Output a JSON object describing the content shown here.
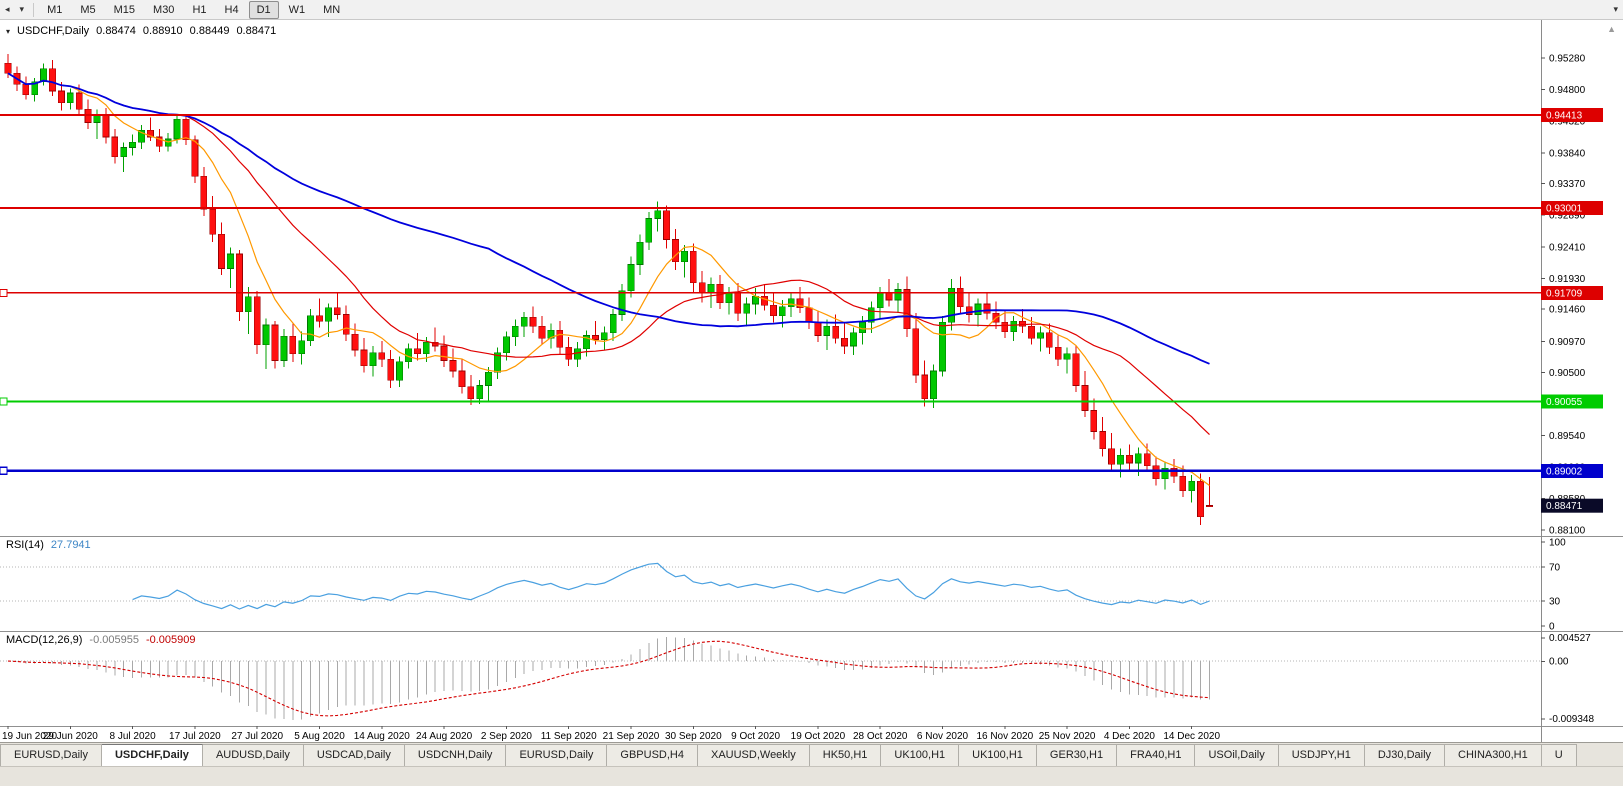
{
  "toolbar": {
    "timeframes": [
      "M1",
      "M5",
      "M15",
      "M30",
      "H1",
      "H4",
      "D1",
      "W1",
      "MN"
    ],
    "active_timeframe": "D1"
  },
  "header": {
    "symbol_label": "USDCHF,Daily",
    "open": "0.88474",
    "high": "0.88910",
    "low": "0.88449",
    "close": "0.88471"
  },
  "price_axis": {
    "min": 0.8801,
    "max": 0.9586,
    "ticks": [
      "0.95280",
      "0.94800",
      "0.94320",
      "0.93840",
      "0.93370",
      "0.92890",
      "0.92410",
      "0.91930",
      "0.91460",
      "0.90970",
      "0.90500",
      "0.90020",
      "0.89540",
      "0.89060",
      "0.88580",
      "0.88100"
    ]
  },
  "hlines": [
    {
      "label": "0.94413",
      "value": 0.94413,
      "color": "#DD0000",
      "width": 2,
      "text_color": "#FFFFFF",
      "left_marker": false
    },
    {
      "label": "0.93001",
      "value": 0.93001,
      "color": "#DD0000",
      "width": 2,
      "text_color": "#FFFFFF",
      "left_marker": false
    },
    {
      "label": "0.91709",
      "value": 0.91709,
      "color": "#DD0000",
      "width": 1.4,
      "text_color": "#FFFFFF",
      "left_marker": true
    },
    {
      "label": "0.90055",
      "value": 0.90055,
      "color": "#00CC00",
      "width": 2,
      "text_color": "#FFFFFF",
      "left_marker": true
    },
    {
      "label": "0.89002",
      "value": 0.89002,
      "color": "#0000CC",
      "width": 2.4,
      "text_color": "#FFFFFF",
      "left_marker": true
    }
  ],
  "current_price": {
    "label": "0.88471",
    "value": 0.88471,
    "bg": "#0A0A28",
    "text_color": "#FFFFFF"
  },
  "chart_data": {
    "type": "candlestick",
    "symbol": "USDCHF",
    "timeframe": "Daily",
    "x_label_step": 7,
    "x_labels": [
      "19 Jun 2020",
      "29 Jun 2020",
      "8 Jul 2020",
      "17 Jul 2020",
      "27 Jul 2020",
      "5 Aug 2020",
      "14 Aug 2020",
      "24 Aug 2020",
      "2 Sep 2020",
      "11 Sep 2020",
      "21 Sep 2020",
      "30 Sep 2020",
      "9 Oct 2020",
      "19 Oct 2020",
      "28 Oct 2020",
      "6 Nov 2020",
      "16 Nov 2020",
      "25 Nov 2020",
      "4 Dec 2020",
      "14 Dec 2020"
    ],
    "moving_averages": [
      {
        "period": 8,
        "color": "#FF9900",
        "width": 1.2
      },
      {
        "period": 21,
        "color": "#E00000",
        "width": 1.2
      },
      {
        "period": 55,
        "color": "#0000DD",
        "width": 1.8
      }
    ],
    "candles": [
      [
        0.952,
        0.9534,
        0.9498,
        0.9505
      ],
      [
        0.9505,
        0.9515,
        0.9478,
        0.9488
      ],
      [
        0.9488,
        0.95,
        0.9465,
        0.9472
      ],
      [
        0.9472,
        0.9498,
        0.9462,
        0.9492
      ],
      [
        0.9492,
        0.952,
        0.9486,
        0.9512
      ],
      [
        0.9512,
        0.9525,
        0.947,
        0.9478
      ],
      [
        0.9478,
        0.9492,
        0.9448,
        0.946
      ],
      [
        0.946,
        0.9482,
        0.945,
        0.9475
      ],
      [
        0.9475,
        0.9488,
        0.9442,
        0.945
      ],
      [
        0.945,
        0.9465,
        0.942,
        0.943
      ],
      [
        0.943,
        0.945,
        0.9405,
        0.9442
      ],
      [
        0.9442,
        0.9452,
        0.9398,
        0.9408
      ],
      [
        0.9408,
        0.942,
        0.9368,
        0.9378
      ],
      [
        0.9378,
        0.94,
        0.9355,
        0.9392
      ],
      [
        0.9392,
        0.9412,
        0.938,
        0.94
      ],
      [
        0.94,
        0.9426,
        0.939,
        0.9418
      ],
      [
        0.9418,
        0.9438,
        0.9402,
        0.9408
      ],
      [
        0.9408,
        0.942,
        0.9385,
        0.9394
      ],
      [
        0.9394,
        0.9414,
        0.9386,
        0.9405
      ],
      [
        0.9405,
        0.9442,
        0.9398,
        0.9435
      ],
      [
        0.9435,
        0.9441,
        0.9396,
        0.9404
      ],
      [
        0.9404,
        0.941,
        0.9338,
        0.9348
      ],
      [
        0.9348,
        0.9362,
        0.9288,
        0.9298
      ],
      [
        0.9298,
        0.9318,
        0.9248,
        0.926
      ],
      [
        0.926,
        0.9278,
        0.9198,
        0.9208
      ],
      [
        0.9208,
        0.924,
        0.9178,
        0.923
      ],
      [
        0.923,
        0.9236,
        0.9128,
        0.9142
      ],
      [
        0.9142,
        0.918,
        0.9108,
        0.9165
      ],
      [
        0.9165,
        0.9174,
        0.9078,
        0.9092
      ],
      [
        0.9092,
        0.9132,
        0.9055,
        0.9122
      ],
      [
        0.9122,
        0.9128,
        0.9056,
        0.9068
      ],
      [
        0.9068,
        0.9116,
        0.9058,
        0.9105
      ],
      [
        0.9105,
        0.9124,
        0.9066,
        0.9078
      ],
      [
        0.9078,
        0.9112,
        0.9062,
        0.9098
      ],
      [
        0.9098,
        0.9146,
        0.909,
        0.9136
      ],
      [
        0.9136,
        0.9162,
        0.9118,
        0.9128
      ],
      [
        0.9128,
        0.9155,
        0.9104,
        0.9148
      ],
      [
        0.9148,
        0.917,
        0.913,
        0.9138
      ],
      [
        0.9138,
        0.9152,
        0.9098,
        0.9108
      ],
      [
        0.9108,
        0.9124,
        0.9074,
        0.9084
      ],
      [
        0.9084,
        0.9102,
        0.905,
        0.906
      ],
      [
        0.906,
        0.909,
        0.9044,
        0.908
      ],
      [
        0.908,
        0.9098,
        0.9058,
        0.907
      ],
      [
        0.907,
        0.9084,
        0.9026,
        0.9038
      ],
      [
        0.9038,
        0.9074,
        0.9028,
        0.9066
      ],
      [
        0.9066,
        0.9094,
        0.9056,
        0.9086
      ],
      [
        0.9086,
        0.911,
        0.9068,
        0.9078
      ],
      [
        0.9078,
        0.9104,
        0.9066,
        0.9096
      ],
      [
        0.9096,
        0.9118,
        0.9082,
        0.909
      ],
      [
        0.909,
        0.9106,
        0.9058,
        0.9068
      ],
      [
        0.9068,
        0.9086,
        0.9042,
        0.9052
      ],
      [
        0.9052,
        0.907,
        0.9018,
        0.9028
      ],
      [
        0.9028,
        0.9046,
        0.9,
        0.901
      ],
      [
        0.901,
        0.9038,
        0.9002,
        0.903
      ],
      [
        0.903,
        0.9058,
        0.9004,
        0.905
      ],
      [
        0.905,
        0.9088,
        0.904,
        0.908
      ],
      [
        0.908,
        0.9112,
        0.9068,
        0.9104
      ],
      [
        0.9104,
        0.913,
        0.909,
        0.912
      ],
      [
        0.912,
        0.9142,
        0.9104,
        0.9134
      ],
      [
        0.9134,
        0.915,
        0.911,
        0.912
      ],
      [
        0.912,
        0.9136,
        0.9092,
        0.9102
      ],
      [
        0.9102,
        0.9124,
        0.9086,
        0.9114
      ],
      [
        0.9114,
        0.9128,
        0.9078,
        0.9088
      ],
      [
        0.9088,
        0.9104,
        0.906,
        0.907
      ],
      [
        0.907,
        0.9096,
        0.9058,
        0.9086
      ],
      [
        0.9086,
        0.9114,
        0.9074,
        0.9106
      ],
      [
        0.9106,
        0.9128,
        0.9092,
        0.91
      ],
      [
        0.91,
        0.912,
        0.9084,
        0.911
      ],
      [
        0.911,
        0.9146,
        0.9098,
        0.9138
      ],
      [
        0.9138,
        0.9184,
        0.9128,
        0.9174
      ],
      [
        0.9174,
        0.9226,
        0.9164,
        0.9214
      ],
      [
        0.9214,
        0.926,
        0.9198,
        0.9248
      ],
      [
        0.9248,
        0.9294,
        0.9236,
        0.9284
      ],
      [
        0.9284,
        0.931,
        0.9264,
        0.9296
      ],
      [
        0.9296,
        0.9304,
        0.9238,
        0.9252
      ],
      [
        0.9252,
        0.9268,
        0.9206,
        0.9218
      ],
      [
        0.9218,
        0.9244,
        0.9194,
        0.9234
      ],
      [
        0.9234,
        0.9246,
        0.9172,
        0.9186
      ],
      [
        0.9186,
        0.9204,
        0.9156,
        0.917
      ],
      [
        0.917,
        0.9194,
        0.9148,
        0.9184
      ],
      [
        0.9184,
        0.9198,
        0.9146,
        0.9156
      ],
      [
        0.9156,
        0.918,
        0.9138,
        0.917
      ],
      [
        0.917,
        0.9186,
        0.9128,
        0.914
      ],
      [
        0.914,
        0.9164,
        0.912,
        0.9154
      ],
      [
        0.9154,
        0.9178,
        0.9138,
        0.9166
      ],
      [
        0.9166,
        0.9184,
        0.9144,
        0.9152
      ],
      [
        0.9152,
        0.917,
        0.9126,
        0.9136
      ],
      [
        0.9136,
        0.916,
        0.9118,
        0.915
      ],
      [
        0.915,
        0.9172,
        0.9134,
        0.9162
      ],
      [
        0.9162,
        0.918,
        0.914,
        0.9148
      ],
      [
        0.9148,
        0.9164,
        0.9116,
        0.9126
      ],
      [
        0.9126,
        0.9144,
        0.9096,
        0.9106
      ],
      [
        0.9106,
        0.913,
        0.9084,
        0.912
      ],
      [
        0.912,
        0.9138,
        0.9094,
        0.9102
      ],
      [
        0.9102,
        0.9124,
        0.9078,
        0.909
      ],
      [
        0.909,
        0.9118,
        0.9076,
        0.911
      ],
      [
        0.911,
        0.9136,
        0.9092,
        0.9126
      ],
      [
        0.9126,
        0.9158,
        0.911,
        0.9148
      ],
      [
        0.9148,
        0.918,
        0.9132,
        0.917
      ],
      [
        0.917,
        0.9192,
        0.915,
        0.916
      ],
      [
        0.916,
        0.9186,
        0.914,
        0.9176
      ],
      [
        0.9176,
        0.9196,
        0.9104,
        0.9116
      ],
      [
        0.9116,
        0.914,
        0.9034,
        0.9046
      ],
      [
        0.9046,
        0.9068,
        0.8998,
        0.901
      ],
      [
        0.901,
        0.9062,
        0.8996,
        0.9052
      ],
      [
        0.9052,
        0.9136,
        0.9044,
        0.9126
      ],
      [
        0.9126,
        0.9192,
        0.9114,
        0.9178
      ],
      [
        0.9178,
        0.9196,
        0.9138,
        0.915
      ],
      [
        0.915,
        0.9172,
        0.9126,
        0.9138
      ],
      [
        0.9138,
        0.9162,
        0.912,
        0.9154
      ],
      [
        0.9154,
        0.917,
        0.913,
        0.914
      ],
      [
        0.914,
        0.9158,
        0.9116,
        0.9126
      ],
      [
        0.9126,
        0.9144,
        0.9102,
        0.9112
      ],
      [
        0.9112,
        0.9136,
        0.9098,
        0.9128
      ],
      [
        0.9128,
        0.9146,
        0.911,
        0.912
      ],
      [
        0.912,
        0.9134,
        0.9092,
        0.9102
      ],
      [
        0.9102,
        0.912,
        0.9082,
        0.911
      ],
      [
        0.911,
        0.9124,
        0.9078,
        0.9088
      ],
      [
        0.9088,
        0.9106,
        0.906,
        0.907
      ],
      [
        0.907,
        0.9088,
        0.9048,
        0.9078
      ],
      [
        0.9078,
        0.909,
        0.902,
        0.903
      ],
      [
        0.903,
        0.9052,
        0.8982,
        0.8992
      ],
      [
        0.8992,
        0.901,
        0.8948,
        0.896
      ],
      [
        0.896,
        0.8982,
        0.8922,
        0.8934
      ],
      [
        0.8934,
        0.8958,
        0.8898,
        0.891
      ],
      [
        0.891,
        0.8934,
        0.889,
        0.8924
      ],
      [
        0.8924,
        0.894,
        0.8902,
        0.8912
      ],
      [
        0.8912,
        0.8936,
        0.8892,
        0.8926
      ],
      [
        0.8926,
        0.8942,
        0.89,
        0.8908
      ],
      [
        0.8908,
        0.8922,
        0.8878,
        0.8888
      ],
      [
        0.8888,
        0.8914,
        0.8872,
        0.8904
      ],
      [
        0.8904,
        0.8918,
        0.8882,
        0.8892
      ],
      [
        0.8892,
        0.8908,
        0.886,
        0.887
      ],
      [
        0.887,
        0.8894,
        0.8852,
        0.8884
      ],
      [
        0.8884,
        0.8896,
        0.8818,
        0.883
      ],
      [
        0.88474,
        0.8891,
        0.88449,
        0.88471
      ]
    ]
  },
  "indicators": {
    "rsi": {
      "name": "RSI(14)",
      "value": "27.7941",
      "period": 14,
      "color": "#4AA0E0",
      "levels": [
        70,
        30
      ],
      "axis_labels": [
        "100",
        "70",
        "30",
        "0"
      ]
    },
    "macd": {
      "name": "MACD(12,26,9)",
      "main_value": "-0.005955",
      "signal_value": "-0.005909",
      "fast": 12,
      "slow": 26,
      "signal_period": 9,
      "axis_labels": [
        "0.004527",
        "0.00",
        "-0.009348"
      ],
      "hist_color": "#A9A9A9",
      "signal_color": "#D40000"
    }
  },
  "tabs": {
    "active_index": 1,
    "items": [
      "EURUSD,Daily",
      "USDCHF,Daily",
      "AUDUSD,Daily",
      "USDCAD,Daily",
      "USDCNH,Daily",
      "EURUSD,Daily",
      "GBPUSD,H4",
      "XAUUSD,Weekly",
      "HK50,H1",
      "UK100,H1",
      "UK100,H1",
      "GER30,H1",
      "FRA40,H1",
      "USOil,Daily",
      "USDJPY,H1",
      "DJ30,Daily",
      "CHINA300,H1",
      "U"
    ]
  }
}
